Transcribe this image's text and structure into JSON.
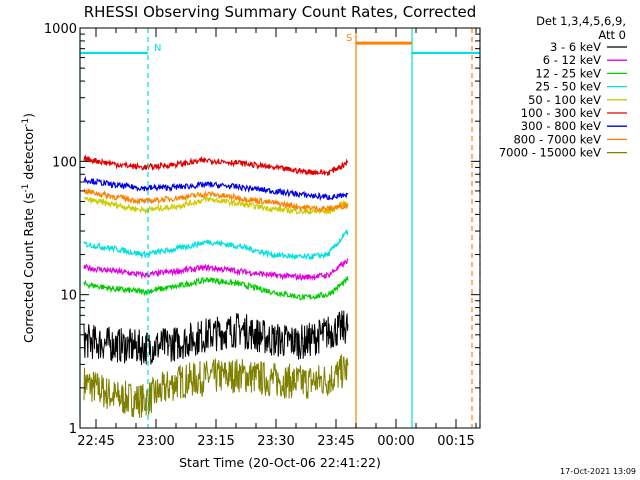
{
  "chart_data": {
    "type": "line",
    "title": "RHESSI Observing Summary Count Rates, Corrected",
    "xlabel": "Start Time (20-Oct-06 22:41:22)",
    "ylabel": "Corrected Count Rate (s",
    "ylabel_sup1": "-1",
    "ylabel_mid": " detector",
    "ylabel_sup2": "-1",
    "ylabel_end": ")",
    "yscale": "log",
    "ylim": [
      1,
      1000
    ],
    "y_ticks": [
      "1",
      "10",
      "100",
      "1000"
    ],
    "xlim_minutes": [
      -4,
      96
    ],
    "x_ticks": [
      "22:45",
      "23:00",
      "23:15",
      "23:30",
      "23:45",
      "00:00",
      "00:15"
    ],
    "x_tick_minutes": [
      0,
      15,
      30,
      45,
      60,
      75,
      90
    ],
    "legend": {
      "header": "Det 1,3,4,5,6,9,",
      "att": "Att 0",
      "position": "right"
    },
    "series": [
      {
        "name": "3 - 6 keV",
        "color": "#000000",
        "values": [
          4.5,
          4.2,
          4.0,
          4.3,
          5.0,
          5.5,
          4.6,
          4.4,
          5.2,
          5.8
        ]
      },
      {
        "name": "6 - 12 keV",
        "color": "#e000e0",
        "values": [
          16,
          15,
          14,
          15,
          16,
          15,
          14,
          13.5,
          14,
          18
        ]
      },
      {
        "name": "12 - 25 keV",
        "color": "#00cc00",
        "values": [
          12,
          11,
          10.5,
          11.5,
          13,
          12,
          10.5,
          9.5,
          10,
          13
        ]
      },
      {
        "name": "25 - 50 keV",
        "color": "#00e0e0",
        "values": [
          24,
          22,
          20,
          22,
          25,
          23,
          20,
          19,
          20,
          30
        ]
      },
      {
        "name": "50 - 100 keV",
        "color": "#cccc00",
        "values": [
          52,
          47,
          43,
          46,
          52,
          48,
          44,
          42,
          42,
          50
        ]
      },
      {
        "name": "100 - 300 keV",
        "color": "#e00000",
        "values": [
          105,
          95,
          90,
          95,
          102,
          97,
          90,
          84,
          82,
          98
        ]
      },
      {
        "name": "300 - 800 keV",
        "color": "#0000e0",
        "values": [
          73,
          66,
          63,
          64,
          67,
          64,
          60,
          56,
          54,
          55
        ]
      },
      {
        "name": "800 - 7000 keV",
        "color": "#ff8000",
        "values": [
          60,
          54,
          50,
          53,
          57,
          53,
          49,
          45,
          44,
          47
        ]
      },
      {
        "name": "7000 - 15000 keV",
        "color": "#808000",
        "values": [
          2.2,
          1.7,
          1.6,
          2.2,
          2.4,
          2.5,
          2.3,
          2.2,
          2.3,
          2.8
        ]
      }
    ],
    "series_x_minutes": [
      -3,
      5,
      12,
      20,
      28,
      36,
      44,
      52,
      58,
      63
    ],
    "segments": {
      "night": {
        "label": "N",
        "color": "#00e0e0",
        "level": 650,
        "ranges_minutes": [
          [
            -4,
            13
          ],
          [
            79,
            96
          ]
        ]
      },
      "saa": {
        "label": "S",
        "color": "#ff8000",
        "level": 770,
        "ranges_minutes": [
          [
            65,
            79
          ]
        ]
      }
    },
    "markers_minutes": [
      {
        "at": -4,
        "color": "#00e0e0",
        "style": "solid"
      },
      {
        "at": 13,
        "color": "#00e0e0",
        "style": "dashed"
      },
      {
        "at": 65,
        "color": "#ff8000",
        "style": "solid"
      },
      {
        "at": 79,
        "color": "#00e0e0",
        "style": "solid"
      },
      {
        "at": 94,
        "color": "#ff8000",
        "style": "dashed"
      },
      {
        "at": 96,
        "color": "#00e0e0",
        "style": "dashed"
      }
    ],
    "datestamp": "17-Oct-2021 13:09"
  }
}
